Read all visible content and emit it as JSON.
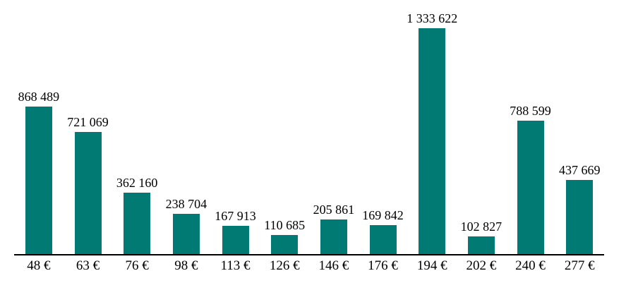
{
  "chart_data": {
    "type": "bar",
    "title": "",
    "xlabel": "",
    "ylabel": "",
    "categories": [
      "48 €",
      "63 €",
      "76 €",
      "98 €",
      "113 €",
      "126 €",
      "146 €",
      "176 €",
      "194 €",
      "202 €",
      "240 €",
      "277 €"
    ],
    "values": [
      868489,
      721069,
      362160,
      238704,
      167913,
      110685,
      205861,
      169842,
      1333622,
      102827,
      788599,
      437669
    ],
    "value_labels": [
      "868 489",
      "721 069",
      "362 160",
      "238 704",
      "167 913",
      "110 685",
      "205 861",
      "169 842",
      "1 333 622",
      "102 827",
      "788 599",
      "437 669"
    ],
    "ylim": [
      0,
      1440000
    ],
    "grid": false,
    "legend": "none",
    "colors": {
      "bar": "#007A72",
      "axis_line": "#000000",
      "text": "#000000",
      "background": "#ffffff"
    }
  }
}
